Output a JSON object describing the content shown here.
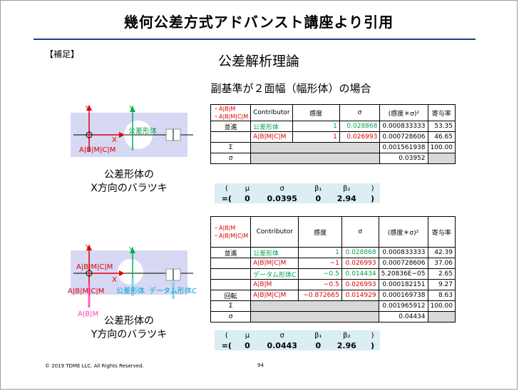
{
  "title": "幾何公差方式アドバンスト講座より引用",
  "note": "【補足】",
  "heading": "公差解析理論",
  "subtitle": "副基準が２面幅（幅形体）の場合",
  "diagram_labels": {
    "y": "Y",
    "x": "X",
    "feature": "公差形体",
    "abcm": "A|B|M|C|M",
    "datum_feature": "データム形体C",
    "ab": "A|B|M"
  },
  "caption_x": [
    "公差形体の",
    "X方向のバラツキ"
  ],
  "caption_y": [
    "公差形体の",
    "Y方向のバラツキ"
  ],
  "table_x": {
    "frame1": "・A|B|M",
    "frame2": "・A|B|M|C|M",
    "headers": [
      "Contributor",
      "感度",
      "σ",
      "(感度＊σ)²",
      "寄与率"
    ],
    "rows": [
      {
        "group": "並進",
        "contributor": "公差形体",
        "sens": "1",
        "sigma": "0.028868",
        "sq": "0.000833333",
        "pct": "53.35"
      },
      {
        "group": "",
        "contributor": "A|B|M|C|M",
        "sens": "1",
        "sigma": "0.026993",
        "sq": "0.000728606",
        "pct": "46.65"
      }
    ],
    "sum_label": "Σ",
    "sum_sq": "0.001561938",
    "sum_pct": "100.00",
    "sigma_label": "σ",
    "sigma_val": "0.03952"
  },
  "table_y": {
    "frame1": "・A|B|M",
    "frame2": "・A|B|M|C|M",
    "headers": [
      "Contributor",
      "感度",
      "σ",
      "(感度＊σ)²",
      "寄与率"
    ],
    "rows": [
      {
        "group": "並進",
        "contributor": "公差形体",
        "sens": "1",
        "sigma": "0.028868",
        "sq": "0.000833333",
        "pct": "42.39",
        "cclass": "grn"
      },
      {
        "group": "",
        "contributor": "A|B|M|C|M",
        "sens": "−1",
        "sigma": "0.026993",
        "sq": "0.000728606",
        "pct": "37.06",
        "cclass": "red"
      },
      {
        "group": "",
        "contributor": "データム形体C",
        "sens": "−0.5",
        "sigma": "0.014434",
        "sq": "5.20836E−05",
        "pct": "2.65",
        "cclass": "grn"
      },
      {
        "group": "",
        "contributor": "A|B|M",
        "sens": "−0.5",
        "sigma": "0.026993",
        "sq": "0.000182151",
        "pct": "9.27",
        "cclass": "red"
      },
      {
        "group": "回転",
        "contributor": "A|B|M|C|M",
        "sens": "−0.872665",
        "sigma": "0.014929",
        "sq": "0.000169738",
        "pct": "8.63",
        "cclass": "red"
      }
    ],
    "sum_label": "Σ",
    "sum_sq": "0.001965912",
    "sum_pct": "100.00",
    "sigma_label": "σ",
    "sigma_val": "0.04434"
  },
  "stat_x": {
    "head": [
      "(",
      "μ",
      "σ",
      "β₁",
      "β₂",
      ")"
    ],
    "vals": [
      "=(",
      "0",
      "0.0395",
      "0",
      "2.94",
      ")"
    ]
  },
  "stat_y": {
    "head": [
      "(",
      "μ",
      "σ",
      "β₁",
      "β₂",
      ")"
    ],
    "vals": [
      "=(",
      "0",
      "0.0443",
      "0",
      "2.96",
      ")"
    ]
  },
  "copyright": "© 2019 TDME LLC. All Rights Reserved.",
  "page": "94",
  "colors": {
    "rule": "#1f3a93",
    "diagram_bg": "#d6d8f4",
    "green": "#00a050",
    "red": "#e00000",
    "stat_bg": "#daeef3"
  }
}
